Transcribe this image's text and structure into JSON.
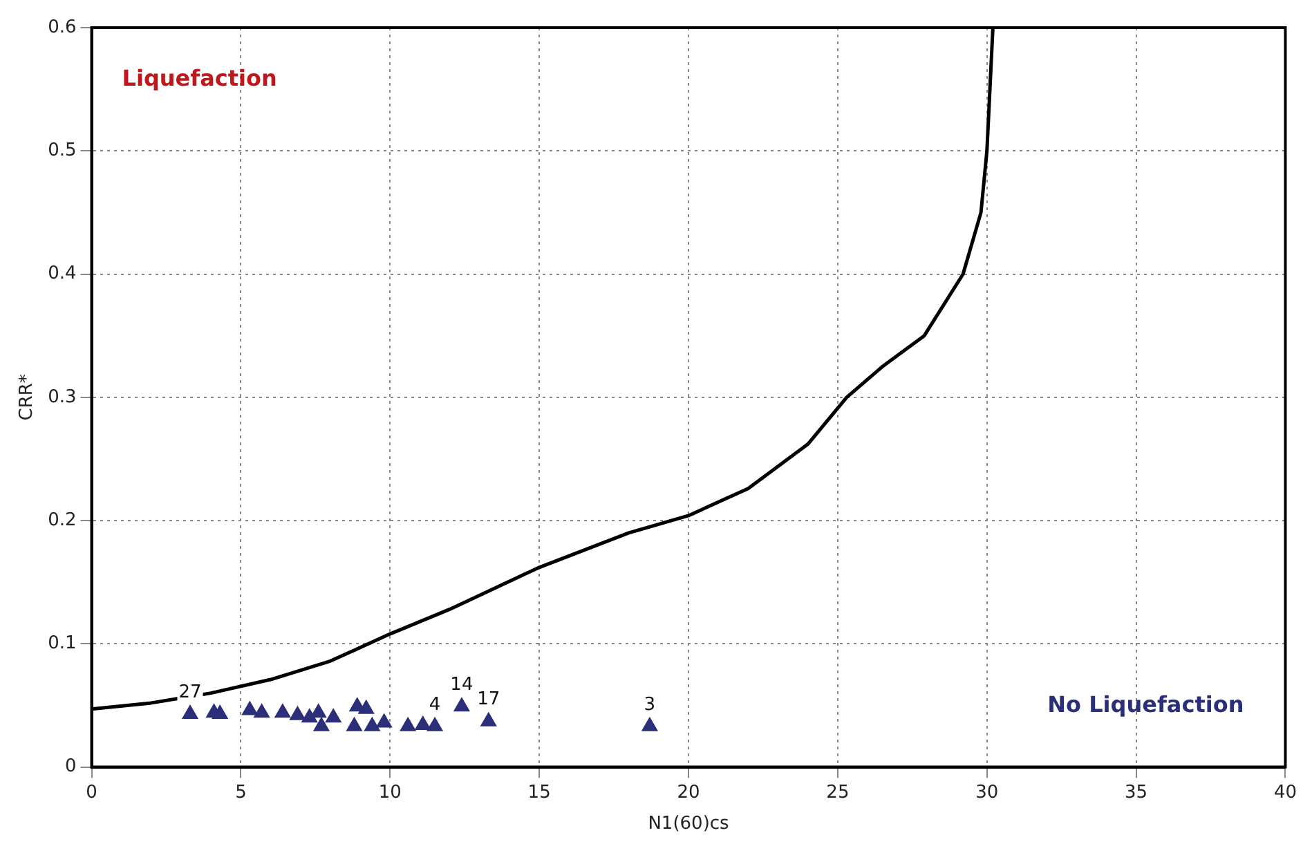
{
  "chart_data": {
    "type": "scatter",
    "xlabel": "N1(60)cs",
    "ylabel": "CRR*",
    "xlim": [
      0,
      40
    ],
    "xticks": [
      0,
      5,
      10,
      15,
      20,
      25,
      30,
      35,
      40
    ],
    "ylim": [
      0,
      0.6
    ],
    "yticks": [
      0,
      0.1,
      0.2,
      0.3,
      0.4,
      0.5,
      0.6
    ],
    "grid": true,
    "legend": false,
    "annotations": [
      "Liquefaction",
      "No Liquefaction",
      {
        "text": "27",
        "x": 3.3,
        "y": 0.043
      },
      {
        "text": "4",
        "x": 11.5,
        "y": 0.033
      },
      {
        "text": "14",
        "x": 12.4,
        "y": 0.049
      },
      {
        "text": "17",
        "x": 13.3,
        "y": 0.037
      },
      {
        "text": "3",
        "x": 18.7,
        "y": 0.033
      }
    ],
    "series": [
      {
        "type": "line",
        "color": "#000000",
        "marker": "none",
        "line_style": "solid",
        "x": [
          0,
          2,
          4,
          6,
          8,
          10,
          12,
          15,
          18,
          20,
          22,
          24,
          25.3,
          26.5,
          27.9,
          29.2,
          29.8,
          30.0,
          30.2
        ],
        "values": [
          0.047,
          0.052,
          0.06,
          0.071,
          0.086,
          0.108,
          0.128,
          0.162,
          0.19,
          0.204,
          0.226,
          0.262,
          0.3,
          0.325,
          0.35,
          0.4,
          0.45,
          0.5,
          0.6
        ]
      },
      {
        "color": "#2b2f7a",
        "marker": "triangle",
        "x": [
          3.3,
          4.1,
          4.3,
          5.3,
          5.7,
          6.4,
          6.9,
          7.3,
          7.6,
          7.7,
          8.1,
          8.9,
          8.8,
          9.2,
          9.4,
          9.8,
          10.6,
          11.1,
          11.5,
          12.4,
          13.3,
          18.7
        ],
        "values": [
          0.043,
          0.044,
          0.043,
          0.046,
          0.044,
          0.044,
          0.042,
          0.04,
          0.044,
          0.033,
          0.04,
          0.049,
          0.033,
          0.047,
          0.033,
          0.036,
          0.033,
          0.034,
          0.033,
          0.049,
          0.037,
          0.033
        ]
      }
    ]
  }
}
